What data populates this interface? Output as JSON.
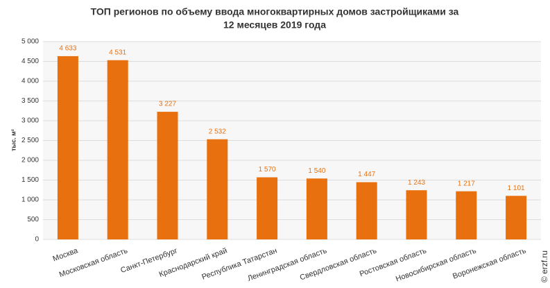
{
  "chart_data": {
    "type": "bar",
    "title": [
      "ТОП регионов по объему ввода многоквартирных домов застройщиками за",
      "12 месяцев 2019 года"
    ],
    "y_label": "тыс. м²",
    "watermark": "© erzf.ru",
    "categories": [
      "Москва",
      "Московская область",
      "Санкт-Петербург",
      "Краснодарский край",
      "Республика Татарстан",
      "Ленинградская область",
      "Свердловская область",
      "Ростовская область",
      "Новосибирская область",
      "Воронежская область"
    ],
    "values": [
      4633,
      4531,
      3227,
      2532,
      1570,
      1540,
      1447,
      1243,
      1217,
      1101
    ],
    "value_labels": [
      "4 633",
      "4 531",
      "3 227",
      "2 532",
      "1 570",
      "1 540",
      "1 447",
      "1 243",
      "1 217",
      "1 101"
    ],
    "color": "#e8700f",
    "ylim": [
      0,
      5000
    ],
    "yticks": [
      0,
      500,
      {
        "value": 1000,
        "label": "1 000"
      },
      {
        "value": 1500,
        "label": "1 500"
      },
      {
        "value": 2000,
        "label": "2 000"
      },
      {
        "value": 2500,
        "label": "2 500"
      },
      {
        "value": 3000,
        "label": "3 000"
      },
      {
        "value": 3500,
        "label": "3 500"
      },
      {
        "value": 4000,
        "label": "4 000"
      },
      {
        "value": 4500,
        "label": "4 500"
      },
      {
        "value": 5000,
        "label": "5 000"
      }
    ],
    "grid": true
  }
}
